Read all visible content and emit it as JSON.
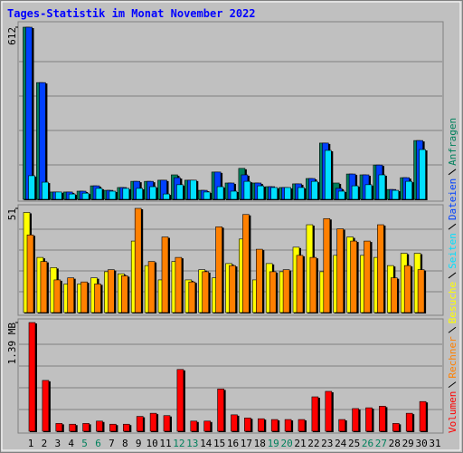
{
  "chart_data": [
    {
      "type": "bar",
      "title": "Tages-Statistik im Monat November 2022",
      "ylim": [
        0,
        612
      ],
      "yticks": [
        612
      ],
      "series": [
        {
          "name": "Anfragen",
          "color": "#00805c",
          "values": [
            612,
            415,
            26,
            26,
            29,
            48,
            32,
            42,
            64,
            64,
            68,
            87,
            68,
            32,
            97,
            58,
            110,
            58,
            45,
            42,
            55,
            74,
            200,
            58,
            90,
            87,
            122,
            35,
            77,
            209,
            0
          ]
        },
        {
          "name": "Dateien",
          "color": "#0040ff",
          "values": [
            612,
            415,
            26,
            26,
            29,
            48,
            32,
            42,
            64,
            64,
            68,
            77,
            68,
            32,
            97,
            58,
            87,
            58,
            45,
            42,
            55,
            74,
            200,
            39,
            90,
            87,
            122,
            35,
            77,
            209,
            0
          ]
        },
        {
          "name": "Seiten",
          "color": "#00e0ff",
          "values": [
            84,
            61,
            26,
            19,
            22,
            39,
            29,
            39,
            39,
            45,
            19,
            52,
            68,
            26,
            45,
            29,
            64,
            48,
            42,
            42,
            42,
            64,
            174,
            29,
            48,
            52,
            87,
            32,
            64,
            177,
            0
          ]
        }
      ]
    },
    {
      "type": "bar",
      "ylim": [
        0,
        51
      ],
      "yticks": [
        51
      ],
      "series": [
        {
          "name": "Besuche",
          "color": "#ffff00",
          "values": [
            49,
            27,
            22,
            14,
            14,
            17,
            20,
            19,
            35,
            23,
            16,
            25,
            16,
            21,
            17,
            24,
            36,
            16,
            24,
            20,
            32,
            43,
            20,
            28,
            37,
            28,
            27,
            23,
            29,
            29,
            0
          ]
        },
        {
          "name": "Rechner",
          "color": "#ff8000",
          "values": [
            38,
            25,
            16,
            17,
            15,
            14,
            21,
            18,
            51,
            25,
            37,
            27,
            15,
            20,
            42,
            23,
            48,
            31,
            20,
            21,
            28,
            27,
            46,
            41,
            35,
            35,
            43,
            17,
            23,
            21,
            0
          ]
        }
      ]
    },
    {
      "type": "bar",
      "ylim": [
        0,
        1.39
      ],
      "yticks": [
        {
          "value": 1.39,
          "label": "1.39 MB"
        }
      ],
      "categories": [
        "1",
        "2",
        "3",
        "4",
        "5",
        "6",
        "7",
        "8",
        "9",
        "10",
        "11",
        "12",
        "13",
        "14",
        "15",
        "16",
        "17",
        "18",
        "19",
        "20",
        "21",
        "22",
        "23",
        "24",
        "25",
        "26",
        "27",
        "28",
        "29",
        "30",
        "31"
      ],
      "category_colors": [
        "#000",
        "#000",
        "#000",
        "#000",
        "#00805c",
        "#00805c",
        "#000",
        "#000",
        "#000",
        "#000",
        "#000",
        "#00805c",
        "#00805c",
        "#000",
        "#000",
        "#000",
        "#000",
        "#000",
        "#00805c",
        "#00805c",
        "#000",
        "#000",
        "#000",
        "#000",
        "#000",
        "#00805c",
        "#00805c",
        "#000",
        "#000",
        "#000",
        "#000"
      ],
      "series": [
        {
          "name": "Volumen",
          "color": "#ff0000",
          "values": [
            1.39,
            0.65,
            0.1,
            0.09,
            0.1,
            0.13,
            0.09,
            0.09,
            0.19,
            0.23,
            0.2,
            0.79,
            0.13,
            0.13,
            0.54,
            0.21,
            0.17,
            0.16,
            0.15,
            0.15,
            0.15,
            0.44,
            0.51,
            0.15,
            0.29,
            0.3,
            0.32,
            0.1,
            0.23,
            0.38,
            0
          ]
        }
      ]
    }
  ]
}
